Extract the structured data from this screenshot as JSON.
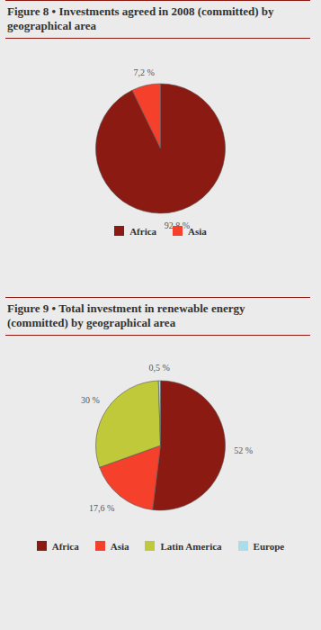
{
  "chart_data": [
    {
      "type": "pie",
      "title": "Figure 8 • Investments agreed in 2008 (committed) by geographical area",
      "categories": [
        "Africa",
        "Asia"
      ],
      "values": [
        92.8,
        7.2
      ],
      "value_labels": [
        "92,8 %",
        "7,2 %"
      ],
      "colors": [
        "#8b1a12",
        "#f5402c"
      ],
      "data_labels": true,
      "legend": "bottom"
    },
    {
      "type": "pie",
      "title": "Figure 9 • Total investment in renewable energy (committed) by geographical area",
      "categories": [
        "Africa",
        "Asia",
        "Latin America",
        "Europe"
      ],
      "values": [
        52,
        17.6,
        30,
        0.5
      ],
      "value_labels": [
        "52 %",
        "17,6 %",
        "30 %",
        "0,5 %"
      ],
      "colors": [
        "#8b1a12",
        "#f5402c",
        "#bfc93a",
        "#a9dde9"
      ],
      "data_labels": true,
      "legend": "bottom"
    }
  ]
}
